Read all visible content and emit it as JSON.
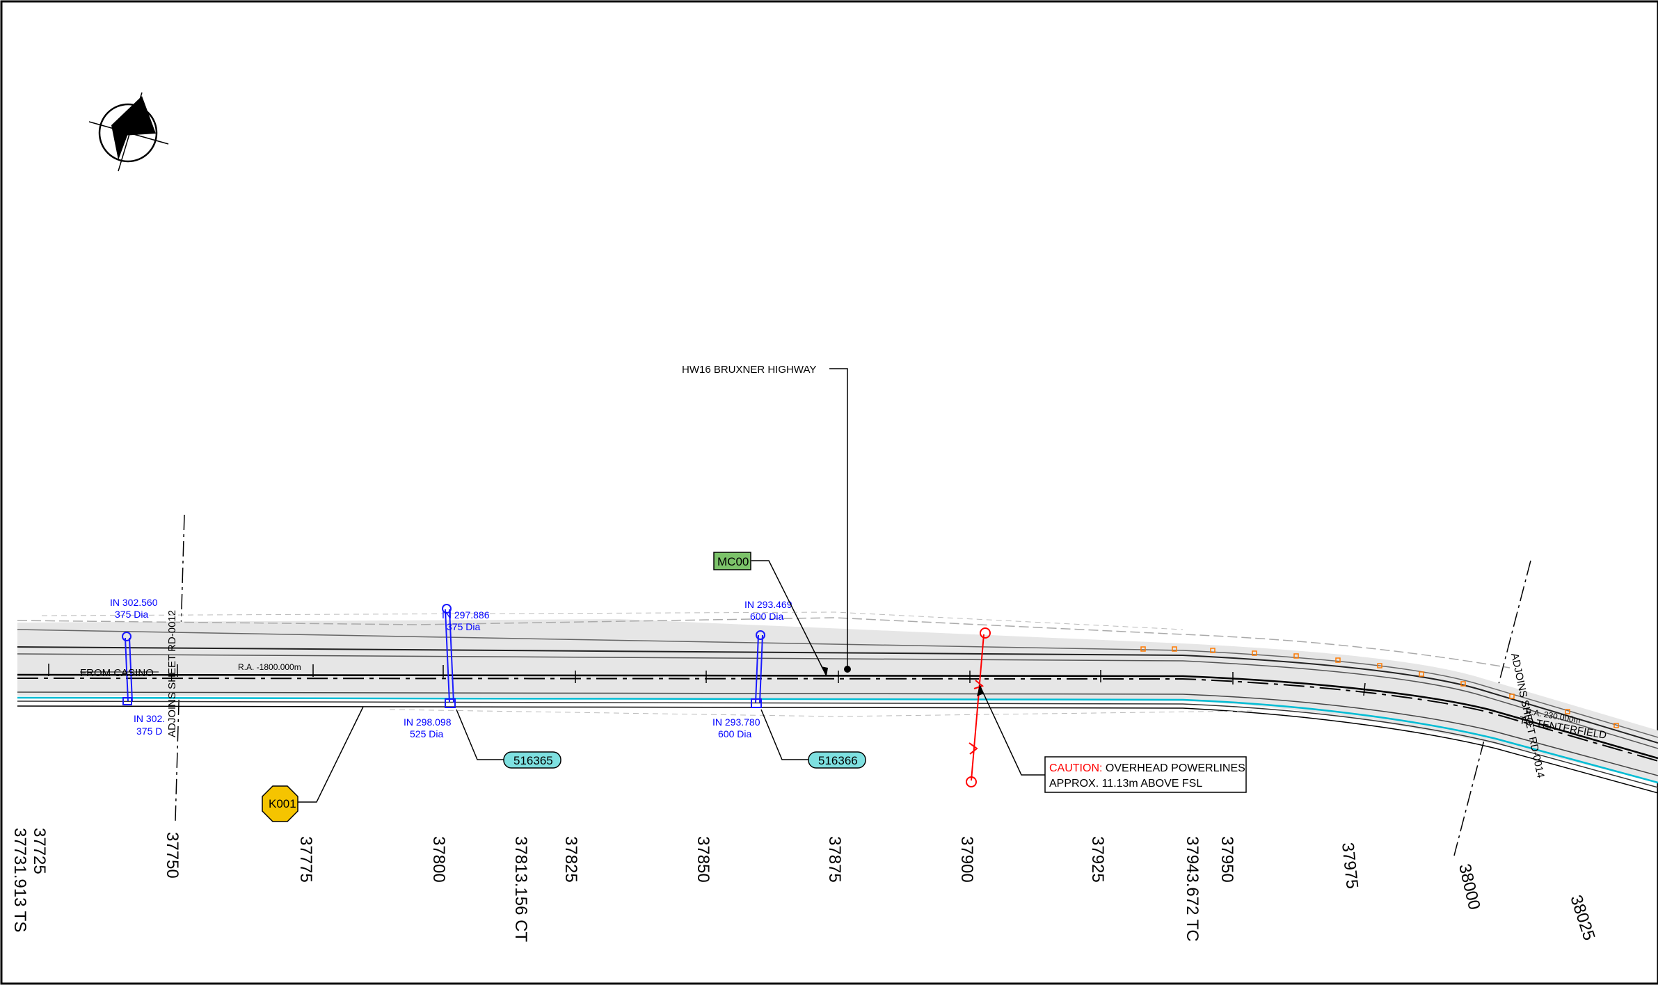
{
  "labels": {
    "highway": "HW16 BRUXNER HIGHWAY",
    "from": "FROM CASINO",
    "to": "TO TENTERFIELD",
    "adjoin_left": "ADJOINS SHEET RD-0012",
    "adjoin_right": "ADJOINS SHEET RD-0014",
    "radius_left": "R.A. -1800.000m",
    "radius_right": "R.A. 230.000m",
    "north": "N"
  },
  "caution": {
    "prefix": "CAUTION:",
    "line1_rest": " OVERHEAD POWERLINES",
    "line2": "APPROX. 11.13m ABOVE FSL"
  },
  "tags": {
    "mc00": "MC00",
    "k001": "K001",
    "culvert_1": "516365",
    "culvert_2": "516366"
  },
  "pits": [
    {
      "top": "IN 302.560",
      "bottom": "375 Dia"
    },
    {
      "top": "IN 302.",
      "bottom": "375 D"
    },
    {
      "top": "IN 297.886",
      "bottom": "375 Dia"
    },
    {
      "top": "IN 298.098",
      "bottom": "525 Dia"
    },
    {
      "top": "IN 293.469",
      "bottom": "600 Dia"
    },
    {
      "top": "IN 293.780",
      "bottom": "600 Dia"
    }
  ],
  "chainages": [
    "37725",
    "37731.913 TS",
    "37750",
    "37775",
    "37800",
    "37813.156 CT",
    "37825",
    "37850",
    "37875",
    "37900",
    "37925",
    "37943.672 TC",
    "37950",
    "37975",
    "38000",
    "38025"
  ],
  "colors": {
    "pavement": "#e6e6e6",
    "drain": "#00bcd4",
    "pipe": "#1a1aff",
    "power": "#ff0000",
    "mc00": "#7cc36a",
    "culvert": "#7ee0e0",
    "k001": "#f5c400",
    "marker": "#ff7a00"
  }
}
